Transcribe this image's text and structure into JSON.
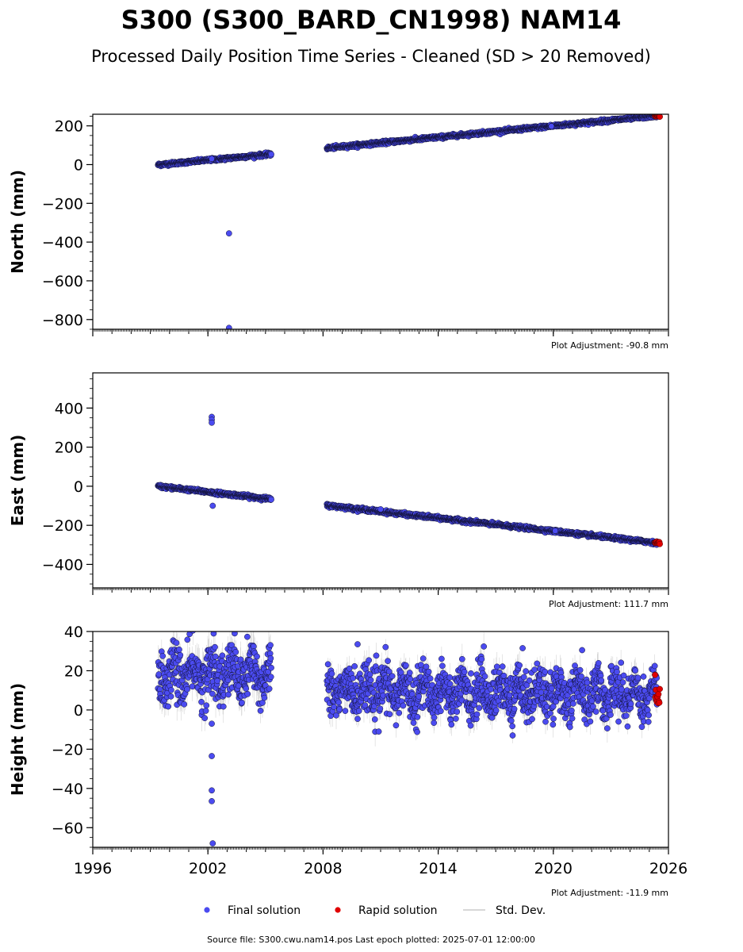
{
  "figure": {
    "title": "S300 (S300_BARD_CN1998) NAM14",
    "subtitle": "Processed Daily Position Time Series - Cleaned (SD > 20 Removed)",
    "footer": "Source file: S300.cwu.nam14.pos  Last epoch plotted: 2025-07-01 12:00:00"
  },
  "legend": {
    "placement": "bottom-center",
    "items": [
      {
        "label": "Final solution",
        "color": "#4b4bf0",
        "marker": "circle"
      },
      {
        "label": "Rapid solution",
        "color": "#e00000",
        "marker": "circle"
      },
      {
        "label": "Std. Dev.",
        "color": "#cccccc",
        "marker": "line"
      }
    ]
  },
  "colors": {
    "final": "#4b4bf0",
    "rapid": "#e00000",
    "stddev": "#b0b0b0",
    "marker_edge": "#111133",
    "axis": "#000000"
  },
  "chart_data": [
    {
      "type": "scatter",
      "ylabel": "North (mm)",
      "xlim": [
        1996,
        2026
      ],
      "ylim": [
        -850,
        260
      ],
      "xticks": [
        1996,
        2002,
        2008,
        2014,
        2020,
        2026
      ],
      "show_xticklabels": false,
      "yticks": [
        -800,
        -600,
        -400,
        -200,
        0,
        200
      ],
      "ytick_labels": [
        "−800",
        "−600",
        "−400",
        "−200",
        "0",
        "200"
      ],
      "yminor_step": 50,
      "adjustment": "Plot Adjustment: -90.8 mm",
      "segments": [
        {
          "x_start": 1999.4,
          "x_end": 2005.3,
          "y_start": -1,
          "y_end": 54,
          "noise": 4,
          "sd": 0
        },
        {
          "x_start": 2008.2,
          "x_end": 2025.4,
          "y_start": 85,
          "y_end": 252,
          "noise": 4,
          "sd": 0
        }
      ],
      "outliers": [
        {
          "x": 2003.1,
          "y": -355
        },
        {
          "x": 2003.1,
          "y": -843
        },
        {
          "x": 2002.2,
          "y": 30
        },
        {
          "x": 2019.9,
          "y": 198
        }
      ],
      "rapid": {
        "x_start": 2025.3,
        "x_end": 2025.55,
        "y": 252,
        "noise": 3
      }
    },
    {
      "type": "scatter",
      "ylabel": "East (mm)",
      "xlim": [
        1996,
        2026
      ],
      "ylim": [
        -520,
        580
      ],
      "xticks": [
        1996,
        2002,
        2008,
        2014,
        2020,
        2026
      ],
      "show_xticklabels": false,
      "yticks": [
        -400,
        -200,
        0,
        200,
        400
      ],
      "ytick_labels": [
        "−400",
        "−200",
        "0",
        "200",
        "400"
      ],
      "yminor_step": 50,
      "adjustment": "Plot Adjustment: 111.7 mm",
      "segments": [
        {
          "x_start": 1999.4,
          "x_end": 2005.3,
          "y_start": 0,
          "y_end": -66,
          "noise": 4,
          "sd": 0
        },
        {
          "x_start": 2008.2,
          "x_end": 2025.4,
          "y_start": -98,
          "y_end": -290,
          "noise": 4,
          "sd": 0
        }
      ],
      "outliers": [
        {
          "x": 2002.2,
          "y": 355
        },
        {
          "x": 2002.2,
          "y": 340
        },
        {
          "x": 2002.2,
          "y": 325
        },
        {
          "x": 2002.25,
          "y": -100
        },
        {
          "x": 2011.0,
          "y": -118
        },
        {
          "x": 2020.1,
          "y": -228
        }
      ],
      "rapid": {
        "x_start": 2025.3,
        "x_end": 2025.55,
        "y": -290,
        "noise": 3
      }
    },
    {
      "type": "scatter",
      "ylabel": "Height (mm)",
      "xlim": [
        1996,
        2026
      ],
      "ylim": [
        -70,
        40
      ],
      "xticks": [
        1996,
        2002,
        2008,
        2014,
        2020,
        2026
      ],
      "xtick_labels": [
        "1996",
        "2002",
        "2008",
        "2014",
        "2020",
        "2026"
      ],
      "show_xticklabels": true,
      "yticks": [
        -60,
        -40,
        -20,
        0,
        20,
        40
      ],
      "ytick_labels": [
        "−60",
        "−40",
        "−20",
        "0",
        "20",
        "40"
      ],
      "yminor_step": 5,
      "adjustment": "Plot Adjustment: -11.9 mm",
      "segments": [
        {
          "x_start": 1999.4,
          "x_end": 2005.3,
          "y_start": 18,
          "y_end": 18,
          "noise": 7,
          "sd": 6,
          "season": 5
        },
        {
          "x_start": 2008.2,
          "x_end": 2025.4,
          "y_start": 10,
          "y_end": 8,
          "noise": 6,
          "sd": 5,
          "season": 5
        }
      ],
      "outliers": [
        {
          "x": 2002.2,
          "y": -7
        },
        {
          "x": 2002.2,
          "y": -23.5
        },
        {
          "x": 2002.2,
          "y": -41
        },
        {
          "x": 2002.2,
          "y": -46.5
        },
        {
          "x": 2002.25,
          "y": -68
        },
        {
          "x": 2002.3,
          "y": 39
        },
        {
          "x": 2018.4,
          "y": 31.5
        },
        {
          "x": 2021.5,
          "y": 30.5
        },
        {
          "x": 2010.9,
          "y": -11
        },
        {
          "x": 2009.8,
          "y": 33.5
        }
      ],
      "rapid": {
        "x_start": 2025.3,
        "x_end": 2025.55,
        "y": 7,
        "noise": 4
      }
    }
  ]
}
